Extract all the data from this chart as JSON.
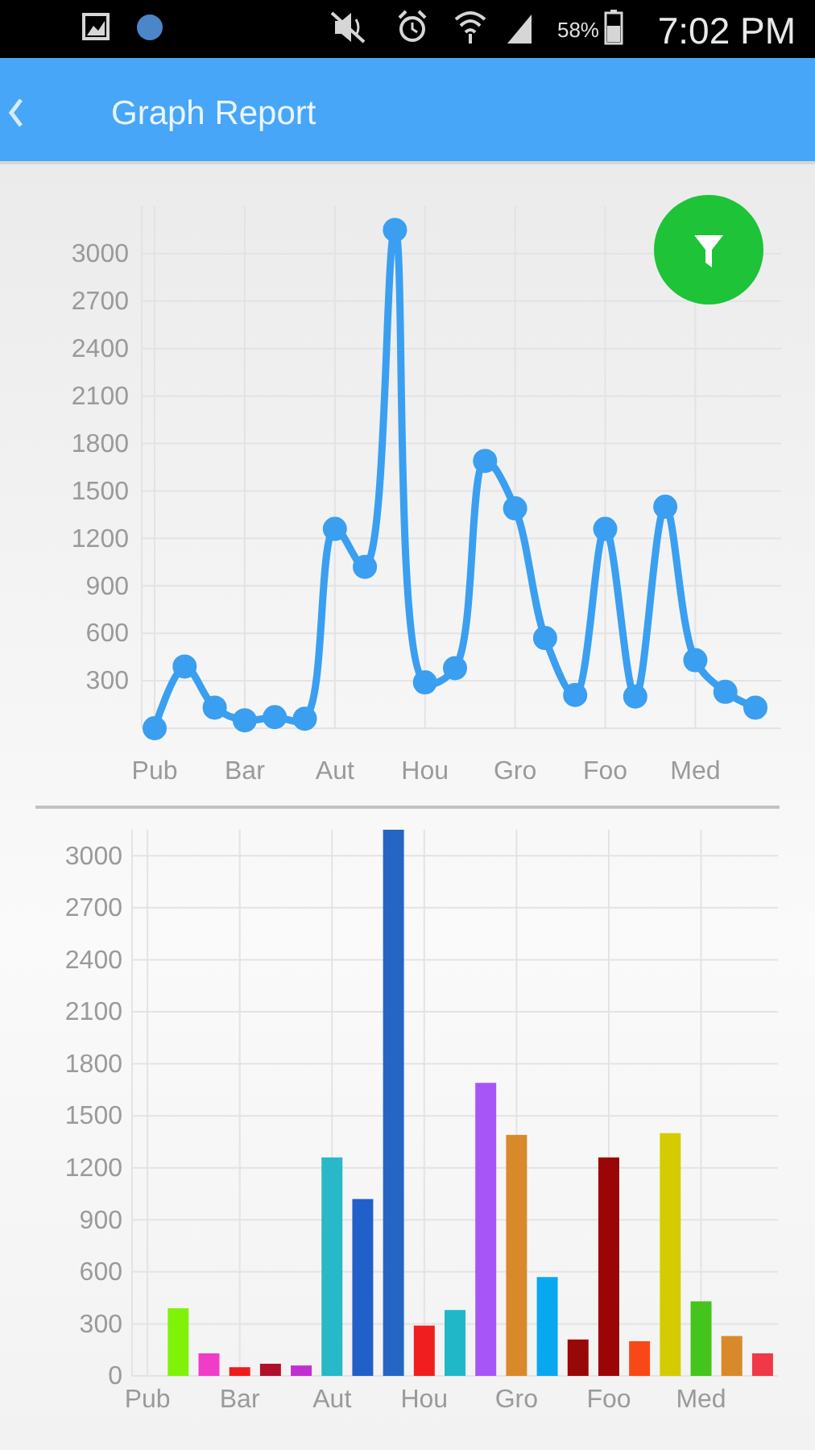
{
  "chart_data": [
    {
      "type": "line",
      "title": "Graph Report",
      "annotations": [
        "58%",
        "7:02 PM"
      ],
      "categories": [
        "Pub",
        null,
        null,
        "Bar",
        null,
        null,
        "Aut",
        null,
        null,
        "Hou",
        null,
        null,
        "Gro",
        null,
        null,
        "Foo",
        null,
        null,
        "Med",
        null,
        null
      ],
      "series": [
        {
          "color": "#3a9ff0",
          "values": [
            0,
            390,
            130,
            50,
            70,
            60,
            1260,
            1020,
            3150,
            290,
            380,
            1690,
            1390,
            570,
            210,
            1260,
            200,
            1400,
            430,
            230,
            130
          ]
        }
      ],
      "ylim": [
        0,
        3300
      ],
      "yticks": [
        {
          "value": 0,
          "label": null
        },
        300,
        600,
        900,
        1200,
        1500,
        1800,
        2100,
        2400,
        2700,
        3000
      ],
      "grid": true,
      "marker": "circle",
      "line_style": "solid"
    },
    {
      "type": "bar",
      "categories": [
        "Pub",
        null,
        null,
        "Bar",
        null,
        null,
        "Aut",
        null,
        null,
        "Hou",
        null,
        null,
        "Gro",
        null,
        null,
        "Foo",
        null,
        null,
        "Med",
        null,
        null
      ],
      "values": [
        0,
        390,
        130,
        50,
        70,
        60,
        1260,
        1020,
        3150,
        290,
        380,
        1690,
        1390,
        570,
        210,
        1260,
        200,
        1400,
        430,
        230,
        130
      ],
      "colors": [
        "#80f20a",
        "#80f20a",
        "#f03cc8",
        "#f01c1c",
        "#b0102a",
        "#c030d0",
        "#28b8c8",
        "#2060c8",
        "#2566c5",
        "#f01e1e",
        "#20b8c8",
        "#a855f7",
        "#d88a2a",
        "#08a8f0",
        "#980808",
        "#9a0606",
        "#f84818",
        "#d4cc00",
        "#44c41c",
        "#d88a2a",
        "#f03848"
      ],
      "ylim": [
        0,
        3150
      ],
      "yticks": [
        0,
        300,
        600,
        900,
        1200,
        1500,
        1800,
        2100,
        2400,
        2700,
        3000
      ],
      "grid": true
    }
  ]
}
